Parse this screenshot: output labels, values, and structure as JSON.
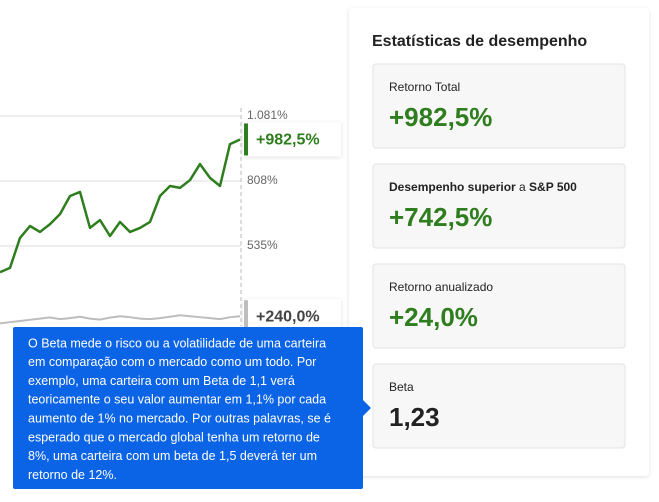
{
  "chart_data": {
    "type": "line",
    "x": [
      0,
      10,
      20,
      30,
      40,
      50,
      60,
      70,
      80,
      90,
      100,
      110,
      120,
      130,
      140,
      150,
      160,
      170,
      180,
      190,
      200,
      210,
      220,
      230,
      240
    ],
    "xlim": [
      0,
      240
    ],
    "ylim": [
      180,
      1081
    ],
    "yticks": [
      {
        "value": 1081,
        "label": "1.081%"
      },
      {
        "value": 808,
        "label": "808%"
      },
      {
        "value": 535,
        "label": "535%"
      }
    ],
    "grid": true,
    "series": [
      {
        "color": "#bdbdbd",
        "end_label": "+240,0%",
        "values": [
          210,
          215,
          220,
          225,
          230,
          235,
          228,
          232,
          238,
          230,
          226,
          234,
          240,
          236,
          230,
          228,
          232,
          238,
          244,
          240,
          236,
          232,
          228,
          236,
          240
        ]
      },
      {
        "color": "#2e7d1e",
        "end_label": "+982,5%",
        "values": [
          425,
          443,
          569,
          619,
          594,
          627,
          669,
          745,
          762,
          611,
          644,
          577,
          636,
          594,
          611,
          636,
          745,
          787,
          779,
          812,
          879,
          821,
          787,
          963,
          982.5
        ]
      }
    ]
  },
  "stats": {
    "title": "Estatísticas de desempenho",
    "cards": [
      {
        "label": "Retorno Total",
        "value": "+982,5%"
      },
      {
        "label_parts": [
          "Desempenho superior",
          " a ",
          "S&P 500"
        ],
        "value": "+742,5%"
      },
      {
        "label": "Retorno anualizado",
        "value": "+24,0%"
      },
      {
        "label": "Beta",
        "value": "1,23"
      }
    ]
  },
  "tooltip": {
    "lines": [
      "O Beta mede o risco ou a volatilidade de uma carteira",
      "em comparação com o mercado como um todo. Por",
      "exemplo, uma carteira com um Beta de 1,1 verá",
      "teoricamente o seu valor aumentar em 1,1% por cada",
      "aumento de 1% no mercado. Por outras palavras, se é",
      "esperado que o mercado global tenha um retorno de",
      "8%, uma carteira com um beta de 1,5 deverá ter um",
      "retorno de 12%."
    ]
  }
}
